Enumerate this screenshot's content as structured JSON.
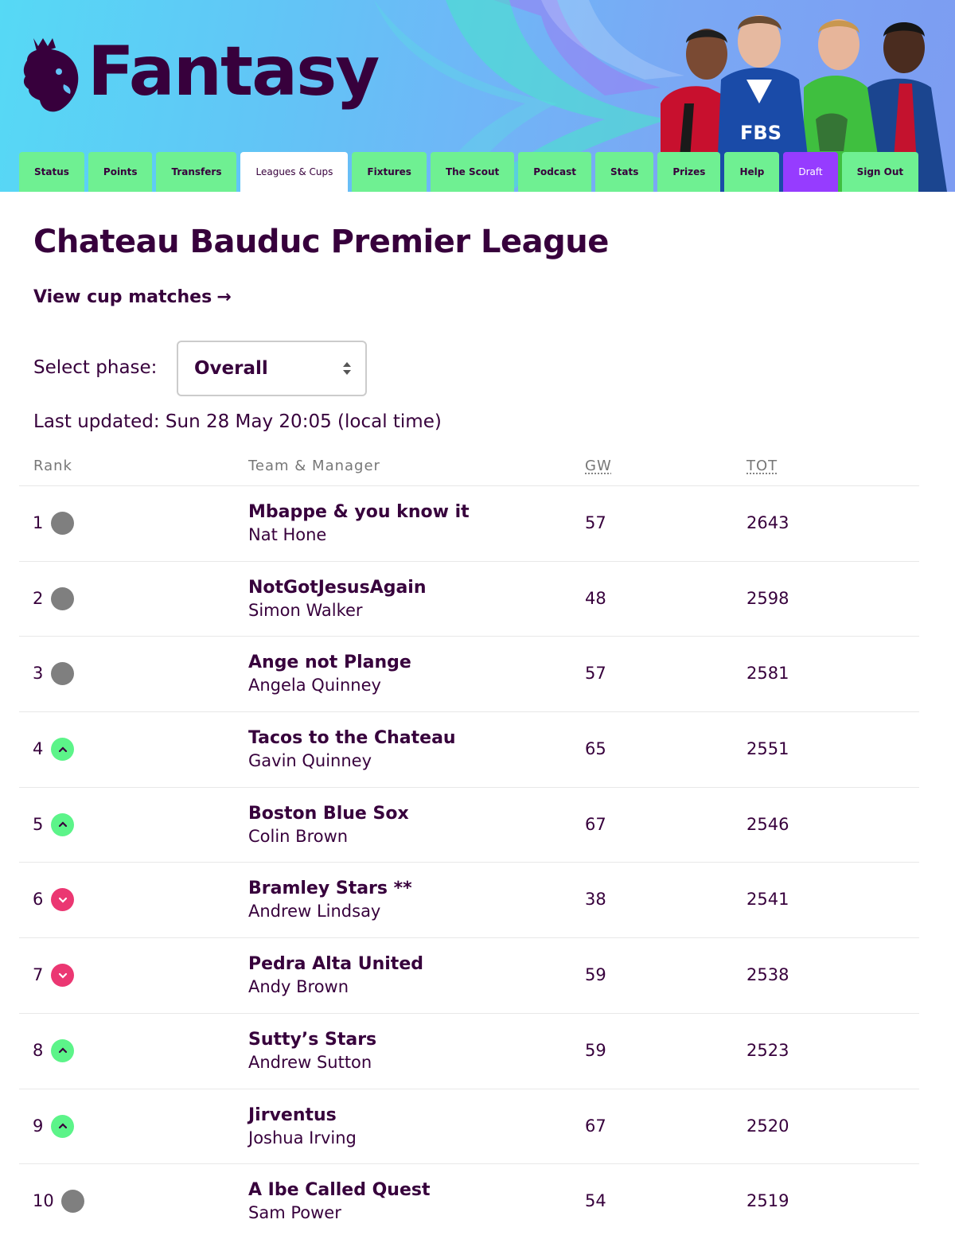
{
  "header": {
    "brand": "Fantasy",
    "sponsor_badge": "FBS",
    "colors": {
      "brand_purple": "#37003c",
      "nav_green": "#6ff092",
      "draft_purple": "#963cff",
      "up_green": "#5cf489",
      "down_pink": "#eb3772"
    }
  },
  "nav": {
    "tabs": [
      {
        "label": "Status",
        "state": "default"
      },
      {
        "label": "Points",
        "state": "default"
      },
      {
        "label": "Transfers",
        "state": "default"
      },
      {
        "label": "Leagues & Cups",
        "state": "active"
      },
      {
        "label": "Fixtures",
        "state": "default"
      },
      {
        "label": "The Scout",
        "state": "default"
      },
      {
        "label": "Podcast",
        "state": "default"
      },
      {
        "label": "Stats",
        "state": "default"
      },
      {
        "label": "Prizes",
        "state": "default"
      },
      {
        "label": "Help",
        "state": "default"
      },
      {
        "label": "Draft",
        "state": "draft"
      },
      {
        "label": "Sign Out",
        "state": "default"
      }
    ]
  },
  "league": {
    "title": "Chateau Bauduc Premier League",
    "cup_link": "View cup matches",
    "cup_link_arrow": "→",
    "phase_label": "Select phase:",
    "phase_value": "Overall",
    "last_updated": "Last updated: Sun 28 May 20:05 (local time)"
  },
  "table": {
    "headers": {
      "rank": "Rank",
      "team": "Team & Manager",
      "gw": "GW",
      "tot": "TOT"
    },
    "rows": [
      {
        "rank": "1",
        "movement": "same",
        "team": "Mbappe & you know it",
        "manager": "Nat Hone",
        "gw": "57",
        "tot": "2643"
      },
      {
        "rank": "2",
        "movement": "same",
        "team": "NotGotJesusAgain",
        "manager": "Simon Walker",
        "gw": "48",
        "tot": "2598"
      },
      {
        "rank": "3",
        "movement": "same",
        "team": "Ange not Plange",
        "manager": "Angela Quinney",
        "gw": "57",
        "tot": "2581"
      },
      {
        "rank": "4",
        "movement": "up",
        "team": "Tacos to the Chateau",
        "manager": "Gavin Quinney",
        "gw": "65",
        "tot": "2551"
      },
      {
        "rank": "5",
        "movement": "up",
        "team": "Boston Blue Sox",
        "manager": "Colin Brown",
        "gw": "67",
        "tot": "2546"
      },
      {
        "rank": "6",
        "movement": "down",
        "team": "Bramley Stars **",
        "manager": "Andrew Lindsay",
        "gw": "38",
        "tot": "2541"
      },
      {
        "rank": "7",
        "movement": "down",
        "team": "Pedra Alta United",
        "manager": "Andy Brown",
        "gw": "59",
        "tot": "2538"
      },
      {
        "rank": "8",
        "movement": "up",
        "team": "Sutty’s Stars",
        "manager": "Andrew Sutton",
        "gw": "59",
        "tot": "2523"
      },
      {
        "rank": "9",
        "movement": "up",
        "team": "Jirventus",
        "manager": "Joshua Irving",
        "gw": "67",
        "tot": "2520"
      },
      {
        "rank": "10",
        "movement": "same",
        "team": "A Ibe Called Quest",
        "manager": "Sam Power",
        "gw": "54",
        "tot": "2519"
      }
    ]
  }
}
